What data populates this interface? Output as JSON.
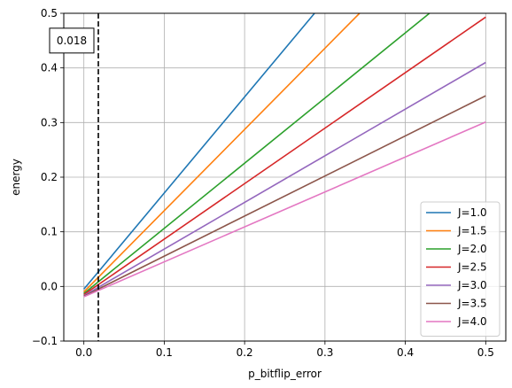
{
  "chart_data": {
    "type": "line",
    "xlabel": "p_bitflip_error",
    "ylabel": "energy",
    "xlim": [
      -0.025,
      0.525
    ],
    "ylim": [
      -0.1,
      0.5
    ],
    "xticks": [
      0.0,
      0.1,
      0.2,
      0.3,
      0.4,
      0.5
    ],
    "xtick_labels": [
      "0.0",
      "0.1",
      "0.2",
      "0.3",
      "0.4",
      "0.5"
    ],
    "yticks": [
      -0.1,
      0.0,
      0.1,
      0.2,
      0.3,
      0.4,
      0.5
    ],
    "ytick_labels": [
      "−0.1",
      "0.0",
      "0.1",
      "0.2",
      "0.3",
      "0.4",
      "0.5"
    ],
    "grid": true,
    "legend_position": "lower-right",
    "vline": {
      "x": 0.018,
      "style": "dashed",
      "color": "#000000"
    },
    "annotation": {
      "text": "0.018",
      "x": 0.018,
      "y": 0.45
    },
    "series": [
      {
        "name": "J=1.0",
        "color": "#1f77b4",
        "x": [
          0.0,
          0.287
        ],
        "y": [
          -0.005,
          0.5
        ]
      },
      {
        "name": "J=1.5",
        "color": "#ff7f0e",
        "x": [
          0.0,
          0.343
        ],
        "y": [
          -0.01,
          0.5
        ]
      },
      {
        "name": "J=2.0",
        "color": "#2ca02c",
        "x": [
          0.0,
          0.43
        ],
        "y": [
          -0.013,
          0.5
        ]
      },
      {
        "name": "J=2.5",
        "color": "#d62728",
        "x": [
          0.0,
          0.5
        ],
        "y": [
          -0.015,
          0.493
        ]
      },
      {
        "name": "J=3.0",
        "color": "#9467bd",
        "x": [
          0.0,
          0.5
        ],
        "y": [
          -0.017,
          0.41
        ]
      },
      {
        "name": "J=3.5",
        "color": "#8c564b",
        "x": [
          0.0,
          0.5
        ],
        "y": [
          -0.018,
          0.349
        ]
      },
      {
        "name": "J=4.0",
        "color": "#e377c2",
        "x": [
          0.0,
          0.5
        ],
        "y": [
          -0.019,
          0.301
        ]
      }
    ]
  }
}
